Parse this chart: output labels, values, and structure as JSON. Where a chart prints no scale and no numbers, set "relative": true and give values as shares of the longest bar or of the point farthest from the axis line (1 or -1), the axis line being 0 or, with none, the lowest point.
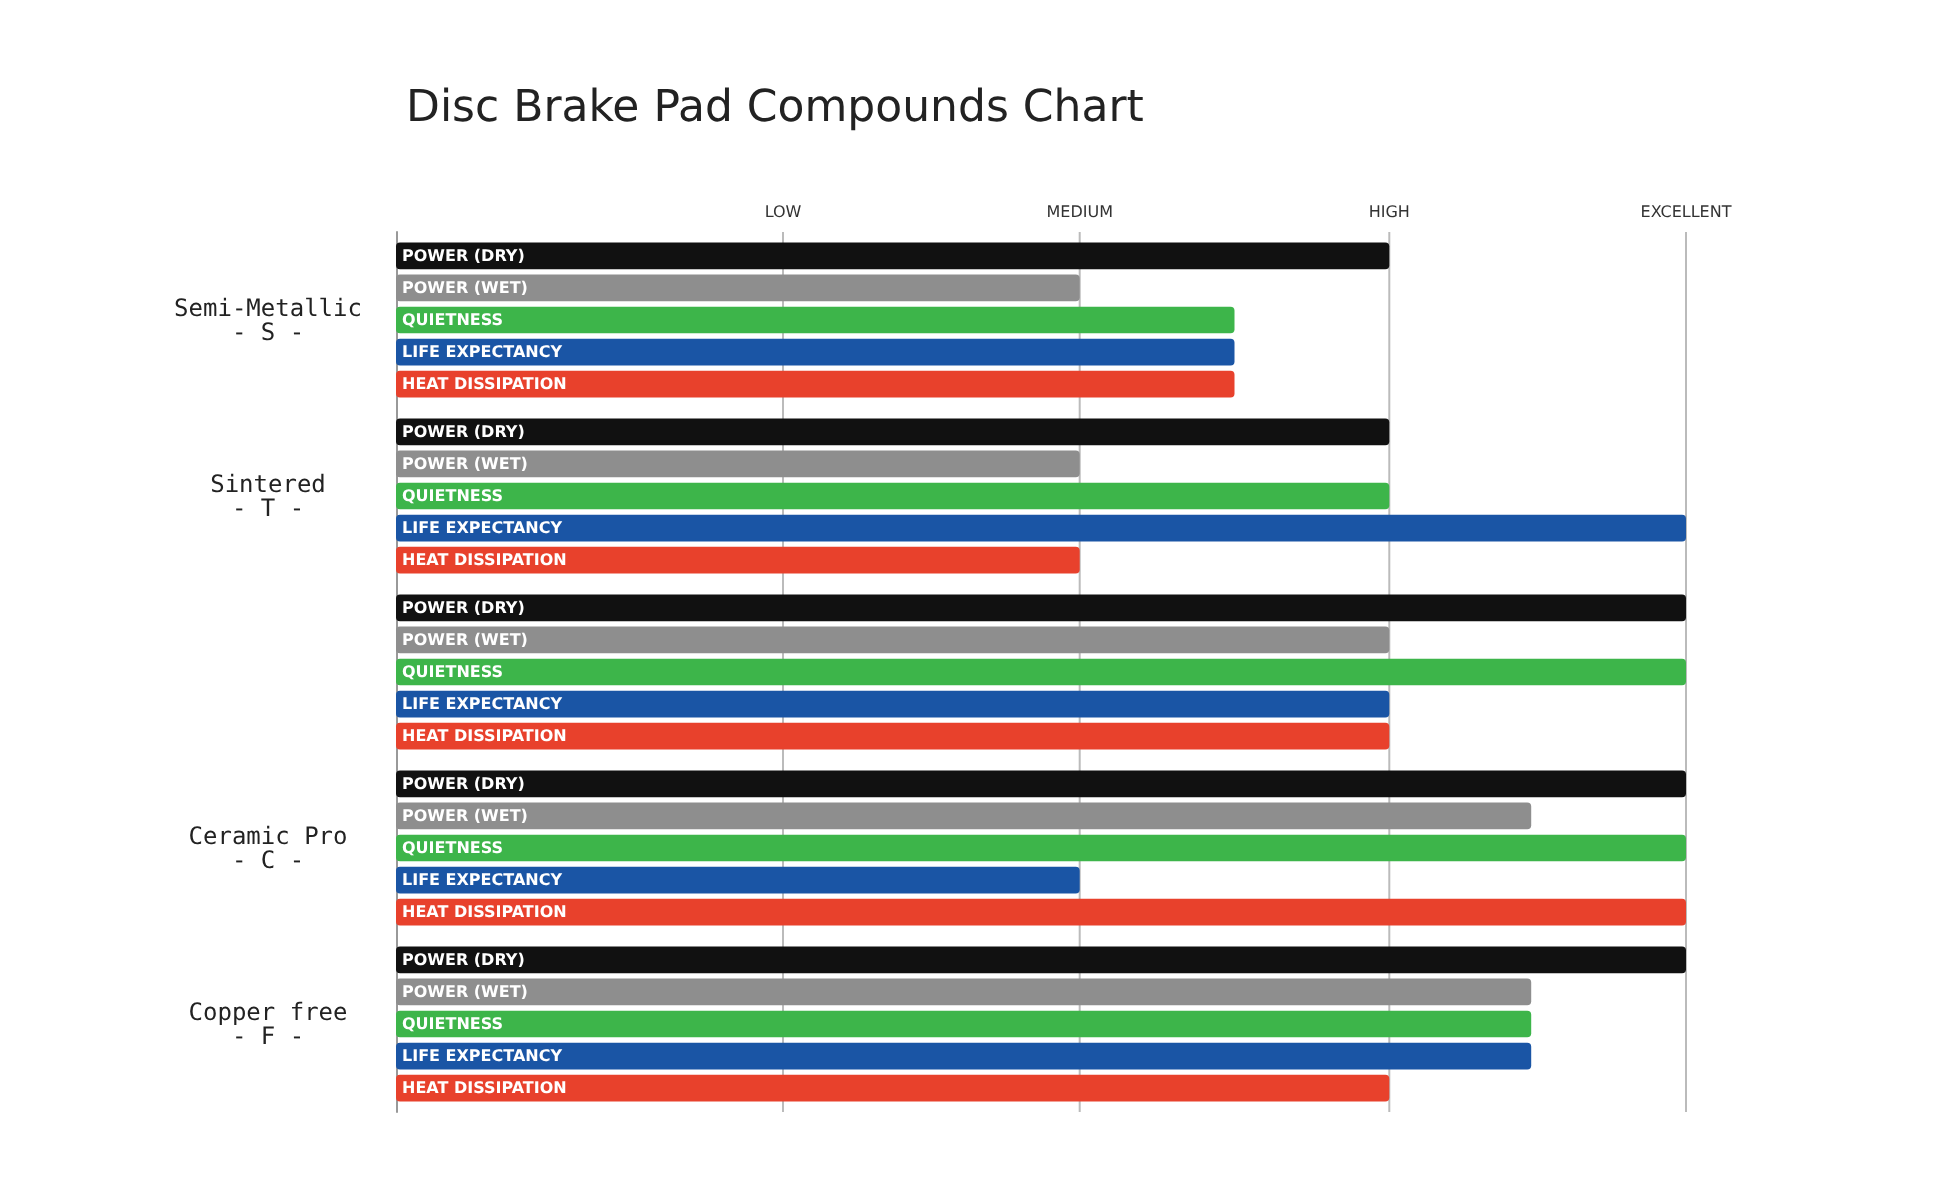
{
  "chart_data": {
    "type": "bar",
    "orientation": "horizontal",
    "relative": true,
    "title": "Disc Brake Pad Compounds Chart",
    "categories": [
      "Semi-Metallic\n- S -",
      "Sintered\n- T -",
      null,
      "Ceramic Pro\n- C -",
      "Copper free\n- F -"
    ],
    "series": [
      {
        "name": "POWER (DRY)",
        "color": "#111111",
        "values": [
          0.77,
          0.77,
          1,
          1,
          1
        ]
      },
      {
        "name": "POWER (WET)",
        "color": "#8e8e8e",
        "values": [
          0.53,
          0.53,
          0.77,
          0.88,
          0.88
        ]
      },
      {
        "name": "QUIETNESS",
        "color": "#3db54a",
        "values": [
          0.65,
          0.77,
          1,
          1,
          0.88
        ]
      },
      {
        "name": "LIFE EXPECTANCY",
        "color": "#1a55a5",
        "values": [
          0.65,
          1,
          0.77,
          0.53,
          0.88
        ]
      },
      {
        "name": "HEAT DISSIPATION",
        "color": "#e8412c",
        "values": [
          0.65,
          0.53,
          0.77,
          1,
          0.77
        ]
      }
    ],
    "ref_lines": [
      {
        "axis": "x",
        "value": 0.3,
        "label": "LOW",
        "color": "#bbbbbb"
      },
      {
        "axis": "x",
        "value": 0.53,
        "label": "MEDIUM",
        "color": "#bbbbbb"
      },
      {
        "axis": "x",
        "value": 0.77,
        "label": "HIGH",
        "color": "#bbbbbb"
      },
      {
        "axis": "x",
        "value": 1,
        "label": "EXCELLENT",
        "color": "#bbbbbb"
      }
    ],
    "legend": false
  }
}
